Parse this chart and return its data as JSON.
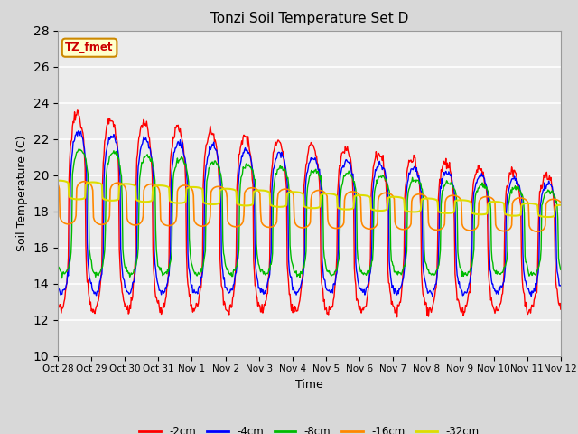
{
  "title": "Tonzi Soil Temperature Set D",
  "xlabel": "Time",
  "ylabel": "Soil Temperature (C)",
  "ylim": [
    10,
    28
  ],
  "yticks": [
    10,
    12,
    14,
    16,
    18,
    20,
    22,
    24,
    26,
    28
  ],
  "xtick_labels": [
    "Oct 28",
    "Oct 29",
    "Oct 30",
    "Oct 31",
    "Nov 1",
    "Nov 2",
    "Nov 3",
    "Nov 4",
    "Nov 5",
    "Nov 6",
    "Nov 7",
    "Nov 8",
    "Nov 9",
    "Nov 10",
    "Nov 11",
    "Nov 12"
  ],
  "legend_entries": [
    "-2cm",
    "-4cm",
    "-8cm",
    "-16cm",
    "-32cm"
  ],
  "colors": {
    "-2cm": "#ff0000",
    "-4cm": "#0000ff",
    "-8cm": "#00bb00",
    "-16cm": "#ff8800",
    "-32cm": "#dddd00"
  },
  "annotation_text": "TZ_fmet",
  "bg_color": "#d8d8d8",
  "plot_bg_color": "#ebebeb",
  "n_days": 15,
  "points_per_day": 48
}
